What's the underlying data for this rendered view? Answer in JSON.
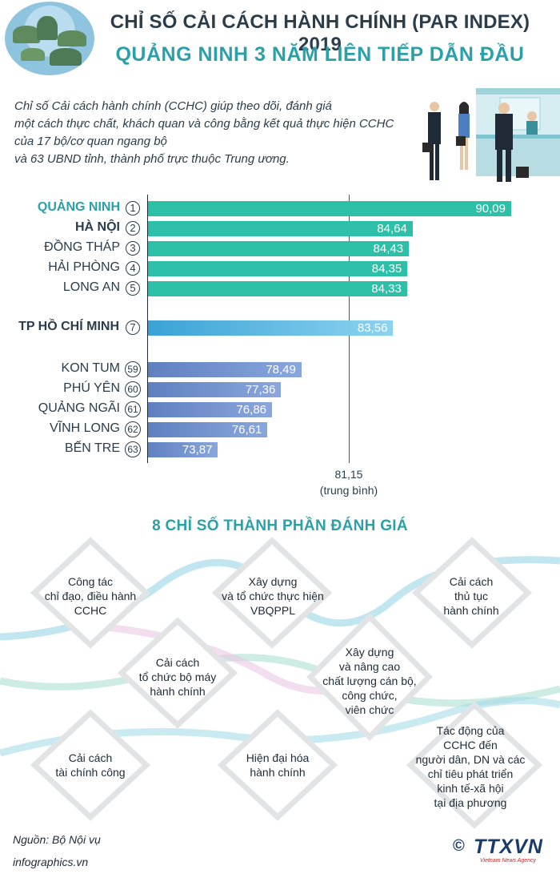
{
  "header": {
    "title_line1": "CHỈ SỐ CẢI CÁCH HÀNH CHÍNH (PAR INDEX) 2019",
    "title_line2": "QUẢNG NINH 3 NĂM LIÊN TIẾP DẪN ĐẦU"
  },
  "intro": {
    "lines": [
      "Chỉ số Cải cách hành chính (CCHC) giúp theo dõi, đánh giá",
      "một cách thực chất, khách quan và công bằng kết quả thực hiện CCHC",
      "của 17 bộ/cơ quan ngang bộ",
      "và 63 UBND tỉnh, thành phố trực thuộc Trung ương."
    ]
  },
  "chart_data": {
    "type": "bar",
    "categories": [
      "QUẢNG NINH",
      "HÀ NỘI",
      "ĐỒNG THÁP",
      "HẢI PHÒNG",
      "LONG AN",
      "TP HỒ CHÍ MINH",
      "KON TUM",
      "PHÚ YÊN",
      "QUẢNG NGÃI",
      "VĨNH LONG",
      "BẾN TRE"
    ],
    "ranks": [
      "1",
      "2",
      "3",
      "4",
      "5",
      "7",
      "59",
      "60",
      "61",
      "62",
      "63"
    ],
    "values": [
      90.09,
      84.64,
      84.43,
      84.35,
      84.33,
      83.56,
      78.49,
      77.36,
      76.86,
      76.61,
      73.87
    ],
    "value_labels": [
      "90,09",
      "84,64",
      "84,43",
      "84,35",
      "84,33",
      "83,56",
      "78,49",
      "77,36",
      "76,86",
      "76,61",
      "73,87"
    ],
    "groups": [
      "top",
      "top",
      "top",
      "top",
      "top",
      "hcm",
      "bottom",
      "bottom",
      "bottom",
      "bottom",
      "bottom"
    ],
    "average": {
      "value": 81.15,
      "value_label": "81,15",
      "label": "(trung bình)"
    },
    "colors": {
      "top": "#2dbfa7",
      "hcm": "#4fb8e3",
      "bottom": "#6a8fcf",
      "highlight_label": "#2aa0a8"
    }
  },
  "components": {
    "title": "8 CHỈ SỐ THÀNH PHẦN ĐÁNH GIÁ",
    "items": [
      "Công tác\nchỉ đạo, điều hành\nCCHC",
      "Xây dựng\nvà tổ chức thực hiện\nVBQPPL",
      "Cải cách\nthủ tục\nhành chính",
      "Cải cách\ntổ chức bộ máy\nhành chính",
      "Xây dựng\nvà nâng cao\nchất lượng cán bộ,\ncông chức,\nviên chức",
      "Cải cách\ntài chính công",
      "Hiện đại hóa\nhành chính",
      "Tác động của\nCCHC đến\nngười dân, DN và các\nchỉ tiêu phát triển\nkinh tế-xã hội\ntại địa phương"
    ]
  },
  "footer": {
    "source": "Nguồn: Bộ Nội vụ",
    "site": "infographics.vn",
    "copyright": "©",
    "agency": "TTXVN",
    "agency_sub": "Vietnam News Agency"
  }
}
